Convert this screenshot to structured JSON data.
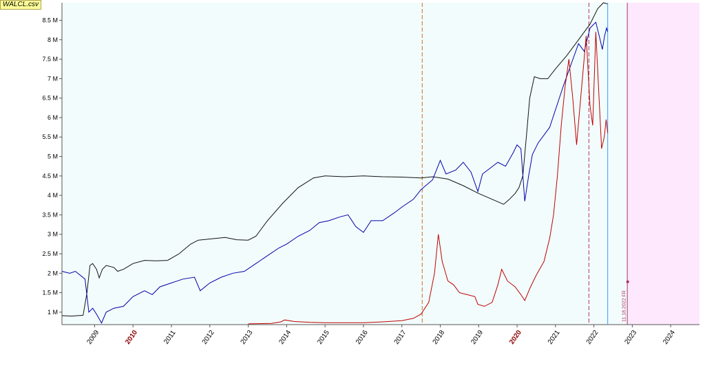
{
  "file_tag": "WALCL.csv",
  "colors": {
    "plot_bg": "#f2fcfc",
    "future_bg": "#fde8fd",
    "series_black": "#111111",
    "series_blue": "#0000aa",
    "series_red": "#c00000",
    "vline_orange": "#d2691e",
    "vline_cyan": "#3399ff",
    "vline_magenta": "#b03060"
  },
  "chart_data": {
    "type": "line",
    "x_domain": [
      2008.15,
      2024.75
    ],
    "ylim": [
      0.68,
      8.95
    ],
    "y_ticks": [
      {
        "value": 1,
        "label": "1 M"
      },
      {
        "value": 1.5,
        "label": "1.5 M"
      },
      {
        "value": 2,
        "label": "2 M"
      },
      {
        "value": 2.5,
        "label": "2.5 M"
      },
      {
        "value": 3,
        "label": "3 M"
      },
      {
        "value": 3.5,
        "label": "3.5 M"
      },
      {
        "value": 4,
        "label": "4 M"
      },
      {
        "value": 4.5,
        "label": "4.5 M"
      },
      {
        "value": 5,
        "label": "5 M"
      },
      {
        "value": 5.5,
        "label": "5.5 M"
      },
      {
        "value": 6,
        "label": "6 M"
      },
      {
        "value": 6.5,
        "label": "6.5 M"
      },
      {
        "value": 7,
        "label": "7 M"
      },
      {
        "value": 7.5,
        "label": "7.5 M"
      },
      {
        "value": 8,
        "label": "8 M"
      },
      {
        "value": 8.5,
        "label": "8.5 M"
      }
    ],
    "x_ticks": [
      {
        "value": 2009,
        "label": "2009",
        "highlight": false
      },
      {
        "value": 2010,
        "label": "2010",
        "highlight": true
      },
      {
        "value": 2011,
        "label": "2011",
        "highlight": false
      },
      {
        "value": 2012,
        "label": "2012",
        "highlight": false
      },
      {
        "value": 2013,
        "label": "2013",
        "highlight": false
      },
      {
        "value": 2014,
        "label": "2014",
        "highlight": false
      },
      {
        "value": 2015,
        "label": "2015",
        "highlight": false
      },
      {
        "value": 2016,
        "label": "2016",
        "highlight": false
      },
      {
        "value": 2017,
        "label": "2017",
        "highlight": false
      },
      {
        "value": 2018,
        "label": "2018",
        "highlight": false
      },
      {
        "value": 2019,
        "label": "2019",
        "highlight": false
      },
      {
        "value": 2020,
        "label": "2020",
        "highlight": true
      },
      {
        "value": 2021,
        "label": "2021",
        "highlight": false
      },
      {
        "value": 2022,
        "label": "2022",
        "highlight": false
      },
      {
        "value": 2023,
        "label": "2023",
        "highlight": false
      },
      {
        "value": 2024,
        "label": "2024",
        "highlight": false
      }
    ],
    "future_region_start": 2022.87,
    "vertical_lines": [
      {
        "x": 2017.53,
        "style": "dashed",
        "color_key": "vline_orange"
      },
      {
        "x": 2021.87,
        "style": "dashed",
        "color_key": "vline_magenta"
      },
      {
        "x": 2022.36,
        "style": "solid",
        "color_key": "vline_cyan"
      },
      {
        "x": 2022.87,
        "style": "solid",
        "color_key": "vline_magenta"
      }
    ],
    "date_marker": {
      "x": 2022.88,
      "y": 1.78,
      "label": "11.18.2022 FR"
    },
    "series": [
      {
        "color_key": "series_black",
        "points": [
          [
            2008.15,
            0.91
          ],
          [
            2008.4,
            0.9
          ],
          [
            2008.7,
            0.92
          ],
          [
            2008.8,
            1.5
          ],
          [
            2008.88,
            2.2
          ],
          [
            2008.95,
            2.25
          ],
          [
            2009.05,
            2.1
          ],
          [
            2009.12,
            1.88
          ],
          [
            2009.2,
            2.1
          ],
          [
            2009.3,
            2.2
          ],
          [
            2009.5,
            2.15
          ],
          [
            2009.6,
            2.05
          ],
          [
            2009.75,
            2.1
          ],
          [
            2010.0,
            2.25
          ],
          [
            2010.3,
            2.33
          ],
          [
            2010.6,
            2.32
          ],
          [
            2010.9,
            2.33
          ],
          [
            2011.2,
            2.5
          ],
          [
            2011.5,
            2.75
          ],
          [
            2011.7,
            2.85
          ],
          [
            2012.0,
            2.88
          ],
          [
            2012.4,
            2.92
          ],
          [
            2012.7,
            2.86
          ],
          [
            2013.0,
            2.85
          ],
          [
            2013.2,
            2.95
          ],
          [
            2013.5,
            3.35
          ],
          [
            2013.9,
            3.8
          ],
          [
            2014.3,
            4.2
          ],
          [
            2014.7,
            4.45
          ],
          [
            2015.0,
            4.5
          ],
          [
            2015.5,
            4.48
          ],
          [
            2016.0,
            4.5
          ],
          [
            2016.5,
            4.48
          ],
          [
            2017.0,
            4.47
          ],
          [
            2017.5,
            4.45
          ],
          [
            2017.8,
            4.48
          ],
          [
            2018.2,
            4.42
          ],
          [
            2018.6,
            4.25
          ],
          [
            2019.0,
            4.05
          ],
          [
            2019.3,
            3.92
          ],
          [
            2019.65,
            3.77
          ],
          [
            2019.8,
            3.9
          ],
          [
            2019.95,
            4.05
          ],
          [
            2020.05,
            4.2
          ],
          [
            2020.15,
            4.5
          ],
          [
            2020.25,
            5.6
          ],
          [
            2020.33,
            6.5
          ],
          [
            2020.45,
            7.05
          ],
          [
            2020.6,
            7.0
          ],
          [
            2020.8,
            7.0
          ],
          [
            2021.0,
            7.25
          ],
          [
            2021.3,
            7.6
          ],
          [
            2021.6,
            8.0
          ],
          [
            2021.9,
            8.4
          ],
          [
            2022.1,
            8.8
          ],
          [
            2022.25,
            8.95
          ],
          [
            2022.35,
            8.92
          ]
        ]
      },
      {
        "color_key": "series_blue",
        "points": [
          [
            2008.15,
            2.05
          ],
          [
            2008.35,
            2.0
          ],
          [
            2008.5,
            2.05
          ],
          [
            2008.75,
            1.85
          ],
          [
            2008.85,
            1.0
          ],
          [
            2008.95,
            1.1
          ],
          [
            2009.05,
            0.95
          ],
          [
            2009.18,
            0.72
          ],
          [
            2009.3,
            1.0
          ],
          [
            2009.5,
            1.1
          ],
          [
            2009.75,
            1.15
          ],
          [
            2010.0,
            1.4
          ],
          [
            2010.3,
            1.55
          ],
          [
            2010.5,
            1.45
          ],
          [
            2010.7,
            1.65
          ],
          [
            2011.0,
            1.75
          ],
          [
            2011.3,
            1.85
          ],
          [
            2011.6,
            1.9
          ],
          [
            2011.75,
            1.55
          ],
          [
            2012.0,
            1.75
          ],
          [
            2012.3,
            1.9
          ],
          [
            2012.6,
            2.0
          ],
          [
            2012.9,
            2.05
          ],
          [
            2013.2,
            2.25
          ],
          [
            2013.5,
            2.45
          ],
          [
            2013.8,
            2.65
          ],
          [
            2014.0,
            2.75
          ],
          [
            2014.3,
            2.95
          ],
          [
            2014.6,
            3.1
          ],
          [
            2014.85,
            3.3
          ],
          [
            2015.1,
            3.35
          ],
          [
            2015.4,
            3.45
          ],
          [
            2015.6,
            3.5
          ],
          [
            2015.8,
            3.2
          ],
          [
            2016.0,
            3.05
          ],
          [
            2016.2,
            3.35
          ],
          [
            2016.5,
            3.35
          ],
          [
            2016.8,
            3.55
          ],
          [
            2017.0,
            3.7
          ],
          [
            2017.3,
            3.9
          ],
          [
            2017.5,
            4.15
          ],
          [
            2017.8,
            4.4
          ],
          [
            2018.0,
            4.9
          ],
          [
            2018.15,
            4.55
          ],
          [
            2018.4,
            4.65
          ],
          [
            2018.6,
            4.85
          ],
          [
            2018.8,
            4.6
          ],
          [
            2018.98,
            4.1
          ],
          [
            2019.1,
            4.55
          ],
          [
            2019.3,
            4.7
          ],
          [
            2019.5,
            4.85
          ],
          [
            2019.7,
            4.75
          ],
          [
            2019.9,
            5.1
          ],
          [
            2020.0,
            5.3
          ],
          [
            2020.1,
            5.2
          ],
          [
            2020.2,
            3.85
          ],
          [
            2020.3,
            4.5
          ],
          [
            2020.4,
            5.05
          ],
          [
            2020.55,
            5.35
          ],
          [
            2020.7,
            5.55
          ],
          [
            2020.85,
            5.75
          ],
          [
            2021.0,
            6.2
          ],
          [
            2021.2,
            6.8
          ],
          [
            2021.4,
            7.35
          ],
          [
            2021.6,
            7.9
          ],
          [
            2021.75,
            7.7
          ],
          [
            2021.9,
            8.3
          ],
          [
            2022.0,
            8.4
          ],
          [
            2022.05,
            8.45
          ],
          [
            2022.15,
            8.05
          ],
          [
            2022.22,
            7.75
          ],
          [
            2022.28,
            8.1
          ],
          [
            2022.33,
            8.3
          ],
          [
            2022.36,
            8.2
          ]
        ]
      },
      {
        "color_key": "series_red",
        "points": [
          [
            2013.0,
            0.7
          ],
          [
            2013.6,
            0.71
          ],
          [
            2013.85,
            0.75
          ],
          [
            2013.95,
            0.8
          ],
          [
            2014.2,
            0.76
          ],
          [
            2014.6,
            0.74
          ],
          [
            2015.0,
            0.73
          ],
          [
            2015.5,
            0.73
          ],
          [
            2016.0,
            0.73
          ],
          [
            2016.5,
            0.75
          ],
          [
            2017.0,
            0.78
          ],
          [
            2017.3,
            0.84
          ],
          [
            2017.5,
            0.95
          ],
          [
            2017.7,
            1.25
          ],
          [
            2017.85,
            2.0
          ],
          [
            2017.95,
            3.0
          ],
          [
            2018.05,
            2.3
          ],
          [
            2018.2,
            1.8
          ],
          [
            2018.35,
            1.7
          ],
          [
            2018.5,
            1.5
          ],
          [
            2018.7,
            1.45
          ],
          [
            2018.9,
            1.4
          ],
          [
            2018.98,
            1.2
          ],
          [
            2019.15,
            1.15
          ],
          [
            2019.35,
            1.25
          ],
          [
            2019.5,
            1.7
          ],
          [
            2019.6,
            2.1
          ],
          [
            2019.75,
            1.8
          ],
          [
            2019.95,
            1.65
          ],
          [
            2020.1,
            1.45
          ],
          [
            2020.2,
            1.3
          ],
          [
            2020.35,
            1.65
          ],
          [
            2020.5,
            1.95
          ],
          [
            2020.7,
            2.3
          ],
          [
            2020.85,
            2.9
          ],
          [
            2020.95,
            3.5
          ],
          [
            2021.05,
            4.5
          ],
          [
            2021.15,
            5.8
          ],
          [
            2021.25,
            6.8
          ],
          [
            2021.35,
            7.5
          ],
          [
            2021.45,
            6.5
          ],
          [
            2021.55,
            5.3
          ],
          [
            2021.7,
            7.0
          ],
          [
            2021.8,
            8.1
          ],
          [
            2021.9,
            6.3
          ],
          [
            2021.97,
            5.8
          ],
          [
            2022.05,
            8.2
          ],
          [
            2022.12,
            6.8
          ],
          [
            2022.2,
            5.2
          ],
          [
            2022.27,
            5.5
          ],
          [
            2022.32,
            5.95
          ],
          [
            2022.36,
            5.6
          ]
        ]
      }
    ]
  }
}
